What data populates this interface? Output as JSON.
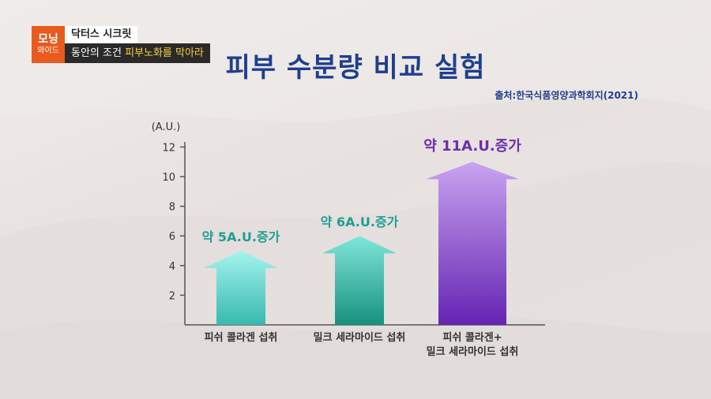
{
  "broadcast": {
    "logo_line1": "모닝",
    "logo_line2": "와이드",
    "show_name": "닥터스 시크릿",
    "subtitle_prefix": "동안의 조건 ",
    "subtitle_highlight": "피부노화를 막아라"
  },
  "title": "피부 수분량 비교 실험",
  "source": "출처:한국식품영양과학회지(2021)",
  "chart_data": {
    "type": "bar",
    "ylabel": "(A.U.)",
    "ylim": [
      0,
      13
    ],
    "yticks": [
      2,
      4,
      6,
      8,
      10,
      12
    ],
    "categories": [
      [
        "피쉬 콜라겐 섭취"
      ],
      [
        "밀크 세라마이드 섭취"
      ],
      [
        "피쉬 콜라겐+",
        "밀크 세라마이드 섭취"
      ]
    ],
    "values": [
      5,
      6,
      11
    ],
    "data_labels": [
      "약 5A.U.증가",
      "약 6A.U.증가",
      "약 11A.U.증가"
    ],
    "colors": [
      "#5fcfc6",
      "#2aa79a",
      "#7b3cc4"
    ],
    "label_colors": [
      "#1f9e93",
      "#1f9e93",
      "#6a2fb0"
    ]
  }
}
